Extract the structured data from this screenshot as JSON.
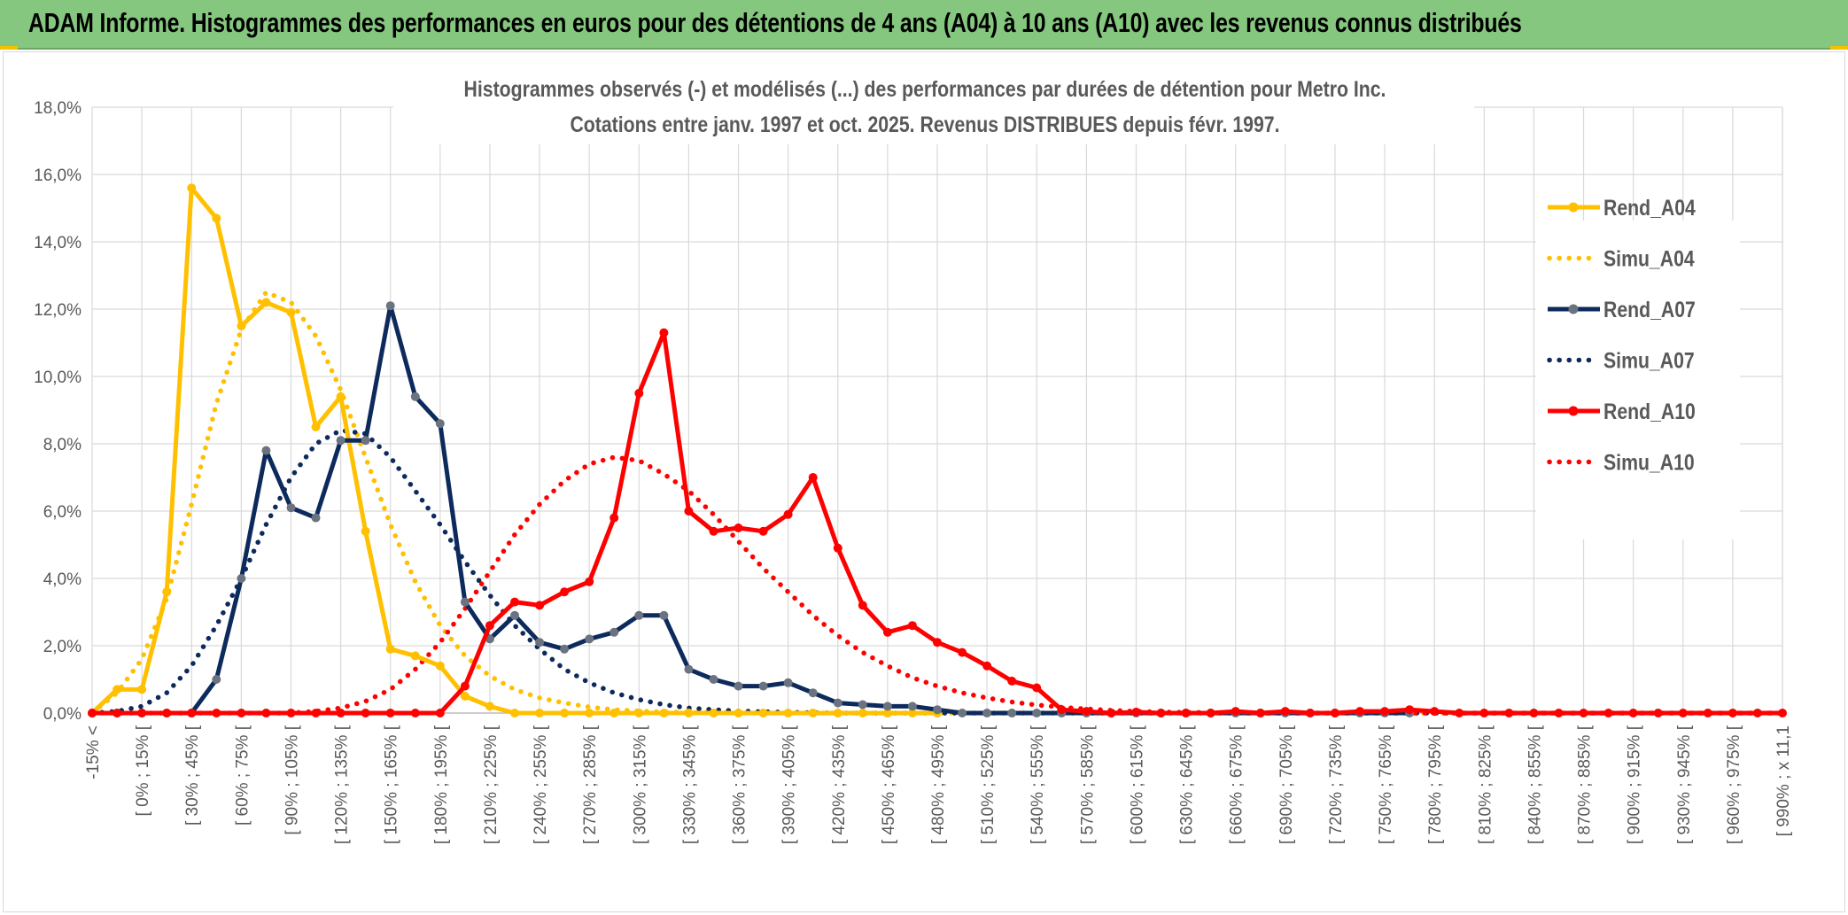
{
  "banner": {
    "title": "ADAM Informe. Histogrammes des performances en euros pour des détentions de 4 ans (A04) à 10 ans (A10) avec les revenus connus distribués"
  },
  "colors": {
    "banner_bg": "#86c77f",
    "a04": "#ffc000",
    "a07": "#0d2a5c",
    "a07_marker": "#6b7280",
    "a10": "#ff0000",
    "grid": "#d9d9d9",
    "text": "#595959"
  },
  "chart_data": {
    "type": "line",
    "title": "Histogrammes observés (-) et modélisés (...) des performances par durées de détention pour Metro Inc.",
    "subtitle": "Cotations entre janv. 1997 et oct. 2025. Revenus DISTRIBUES depuis févr. 1997.",
    "ylim": [
      0,
      18
    ],
    "yticks": [
      "0,0%",
      "2,0%",
      "4,0%",
      "6,0%",
      "8,0%",
      "10,0%",
      "12,0%",
      "14,0%",
      "16,0%",
      "18,0%"
    ],
    "x_labels": [
      "-15% <",
      "[ 0% ; 15% [",
      "[ 30% ; 45% [",
      "[ 60% ; 75% [",
      "[ 90% ; 105% [",
      "[ 120% ; 135% [",
      "[ 150% ; 165% [",
      "[ 180% ; 195% [",
      "[ 210% ; 225% [",
      "[ 240% ; 255% [",
      "[ 270% ; 285% [",
      "[ 300% ; 315% [",
      "[ 330% ; 345% [",
      "[ 360% ; 375% [",
      "[ 390% ; 405% [",
      "[ 420% ; 435% [",
      "[ 450% ; 465% [",
      "[ 480% ; 495% [",
      "[ 510% ; 525% [",
      "[ 540% ; 555% [",
      "[ 570% ; 585% [",
      "[ 600% ; 615% [",
      "[ 630% ; 645% [",
      "[ 660% ; 675% [",
      "[ 690% ; 705% [",
      "[ 720% ; 735% [",
      "[ 750% ; 765% [",
      "[ 780% ; 795% [",
      "[ 810% ; 825% [",
      "[ 840% ; 855% [",
      "[ 870% ; 885% [",
      "[ 900% ; 915% [",
      "[ 930% ; 945% [",
      "[ 960% ; 975% [",
      "[ 990% ; x 11,1"
    ],
    "legend": [
      "Rend_A04",
      "Simu_A04",
      "Rend_A07",
      "Simu_A07",
      "Rend_A10",
      "Simu_A10"
    ],
    "legend_position": "right",
    "series": [
      {
        "name": "Rend_A04",
        "style": "solid",
        "color": "#ffc000",
        "values": [
          0,
          0.7,
          0.7,
          3.6,
          15.6,
          14.7,
          11.5,
          12.2,
          11.9,
          8.5,
          9.4,
          5.4,
          1.9,
          1.7,
          1.4,
          0.5,
          0.2,
          0,
          0,
          0,
          0,
          0,
          0,
          0,
          0,
          0,
          0,
          0,
          0,
          0,
          0,
          0,
          0,
          0,
          0
        ]
      },
      {
        "name": "Simu_A04",
        "style": "dotted",
        "color": "#ffc000",
        "values": [
          0,
          0.6,
          1.6,
          3.4,
          6.2,
          9.2,
          11.4,
          12.5,
          12.2,
          11.2,
          9.6,
          7.6,
          5.6,
          3.9,
          2.6,
          1.7,
          1.1,
          0.7,
          0.45,
          0.3,
          0.18,
          0.1,
          0.06,
          0.03,
          0.02,
          0.01,
          0,
          0,
          0,
          0,
          0,
          0,
          0,
          0,
          0,
          0,
          0,
          0,
          0,
          0,
          0,
          0,
          0,
          0,
          0,
          0,
          0,
          0,
          0,
          0,
          0,
          0,
          0,
          0,
          0,
          0,
          0,
          0,
          0,
          0,
          0,
          0,
          0,
          0,
          0,
          0,
          0,
          0,
          0
        ]
      },
      {
        "name": "Rend_A07",
        "style": "solid",
        "color": "#0d2a5c",
        "values": [
          0,
          0,
          0,
          0,
          0,
          1,
          4,
          7.8,
          6.1,
          5.8,
          8.1,
          8.1,
          12.1,
          9.4,
          8.6,
          3.3,
          2.2,
          2.9,
          2.1,
          1.9,
          2.2,
          2.4,
          2.9,
          2.9,
          1.3,
          1,
          0.8,
          0.8,
          0.9,
          0.6,
          0.3,
          0.25,
          0.2,
          0.2,
          0.1,
          0,
          0,
          0,
          0,
          0,
          0,
          0,
          0,
          0,
          0,
          0,
          0,
          0,
          0,
          0,
          0,
          0,
          0,
          0
        ]
      },
      {
        "name": "Simu_A07",
        "style": "dotted",
        "color": "#0d2a5c",
        "values": [
          0,
          0.05,
          0.2,
          0.6,
          1.4,
          2.6,
          4.0,
          5.6,
          7.0,
          8.0,
          8.4,
          8.3,
          7.6,
          6.6,
          5.6,
          4.5,
          3.5,
          2.6,
          1.9,
          1.3,
          0.9,
          0.6,
          0.4,
          0.25,
          0.15,
          0.1,
          0.06,
          0.04,
          0.02,
          0.01,
          0,
          0,
          0,
          0,
          0,
          0,
          0,
          0,
          0,
          0,
          0,
          0,
          0,
          0,
          0,
          0,
          0,
          0,
          0,
          0,
          0,
          0,
          0,
          0,
          0,
          0,
          0,
          0,
          0,
          0,
          0,
          0,
          0,
          0,
          0,
          0,
          0,
          0,
          0
        ]
      },
      {
        "name": "Rend_A10",
        "style": "solid",
        "color": "#ff0000",
        "values": [
          0,
          0,
          0,
          0,
          0,
          0,
          0,
          0,
          0,
          0,
          0,
          0,
          0,
          0,
          0,
          0.8,
          2.6,
          3.3,
          3.2,
          3.6,
          3.9,
          5.8,
          9.5,
          11.3,
          6,
          5.4,
          5.5,
          5.4,
          5.9,
          7,
          4.9,
          3.2,
          2.4,
          2.6,
          2.1,
          1.8,
          1.4,
          0.95,
          0.75,
          0.1,
          0.05,
          0,
          0.03,
          0,
          0,
          0,
          0.05,
          0,
          0.05,
          0,
          0,
          0.05,
          0.05,
          0.1,
          0.05,
          0,
          0,
          0,
          0,
          0,
          0,
          0,
          0,
          0,
          0,
          0,
          0,
          0,
          0
        ]
      },
      {
        "name": "Simu_A10",
        "style": "dotted",
        "color": "#ff0000",
        "values": [
          0,
          0,
          0,
          0,
          0,
          0,
          0,
          0,
          0,
          0.05,
          0.15,
          0.35,
          0.7,
          1.3,
          2.1,
          3.1,
          4.2,
          5.3,
          6.2,
          6.9,
          7.4,
          7.6,
          7.5,
          7.1,
          6.6,
          5.9,
          5.1,
          4.3,
          3.6,
          2.9,
          2.3,
          1.8,
          1.4,
          1.05,
          0.8,
          0.6,
          0.45,
          0.33,
          0.24,
          0.17,
          0.12,
          0.08,
          0.05,
          0.03,
          0.02,
          0.01,
          0,
          0,
          0,
          0,
          0,
          0,
          0,
          0,
          0,
          0,
          0,
          0,
          0,
          0,
          0,
          0,
          0,
          0,
          0,
          0,
          0,
          0,
          0
        ]
      }
    ]
  }
}
